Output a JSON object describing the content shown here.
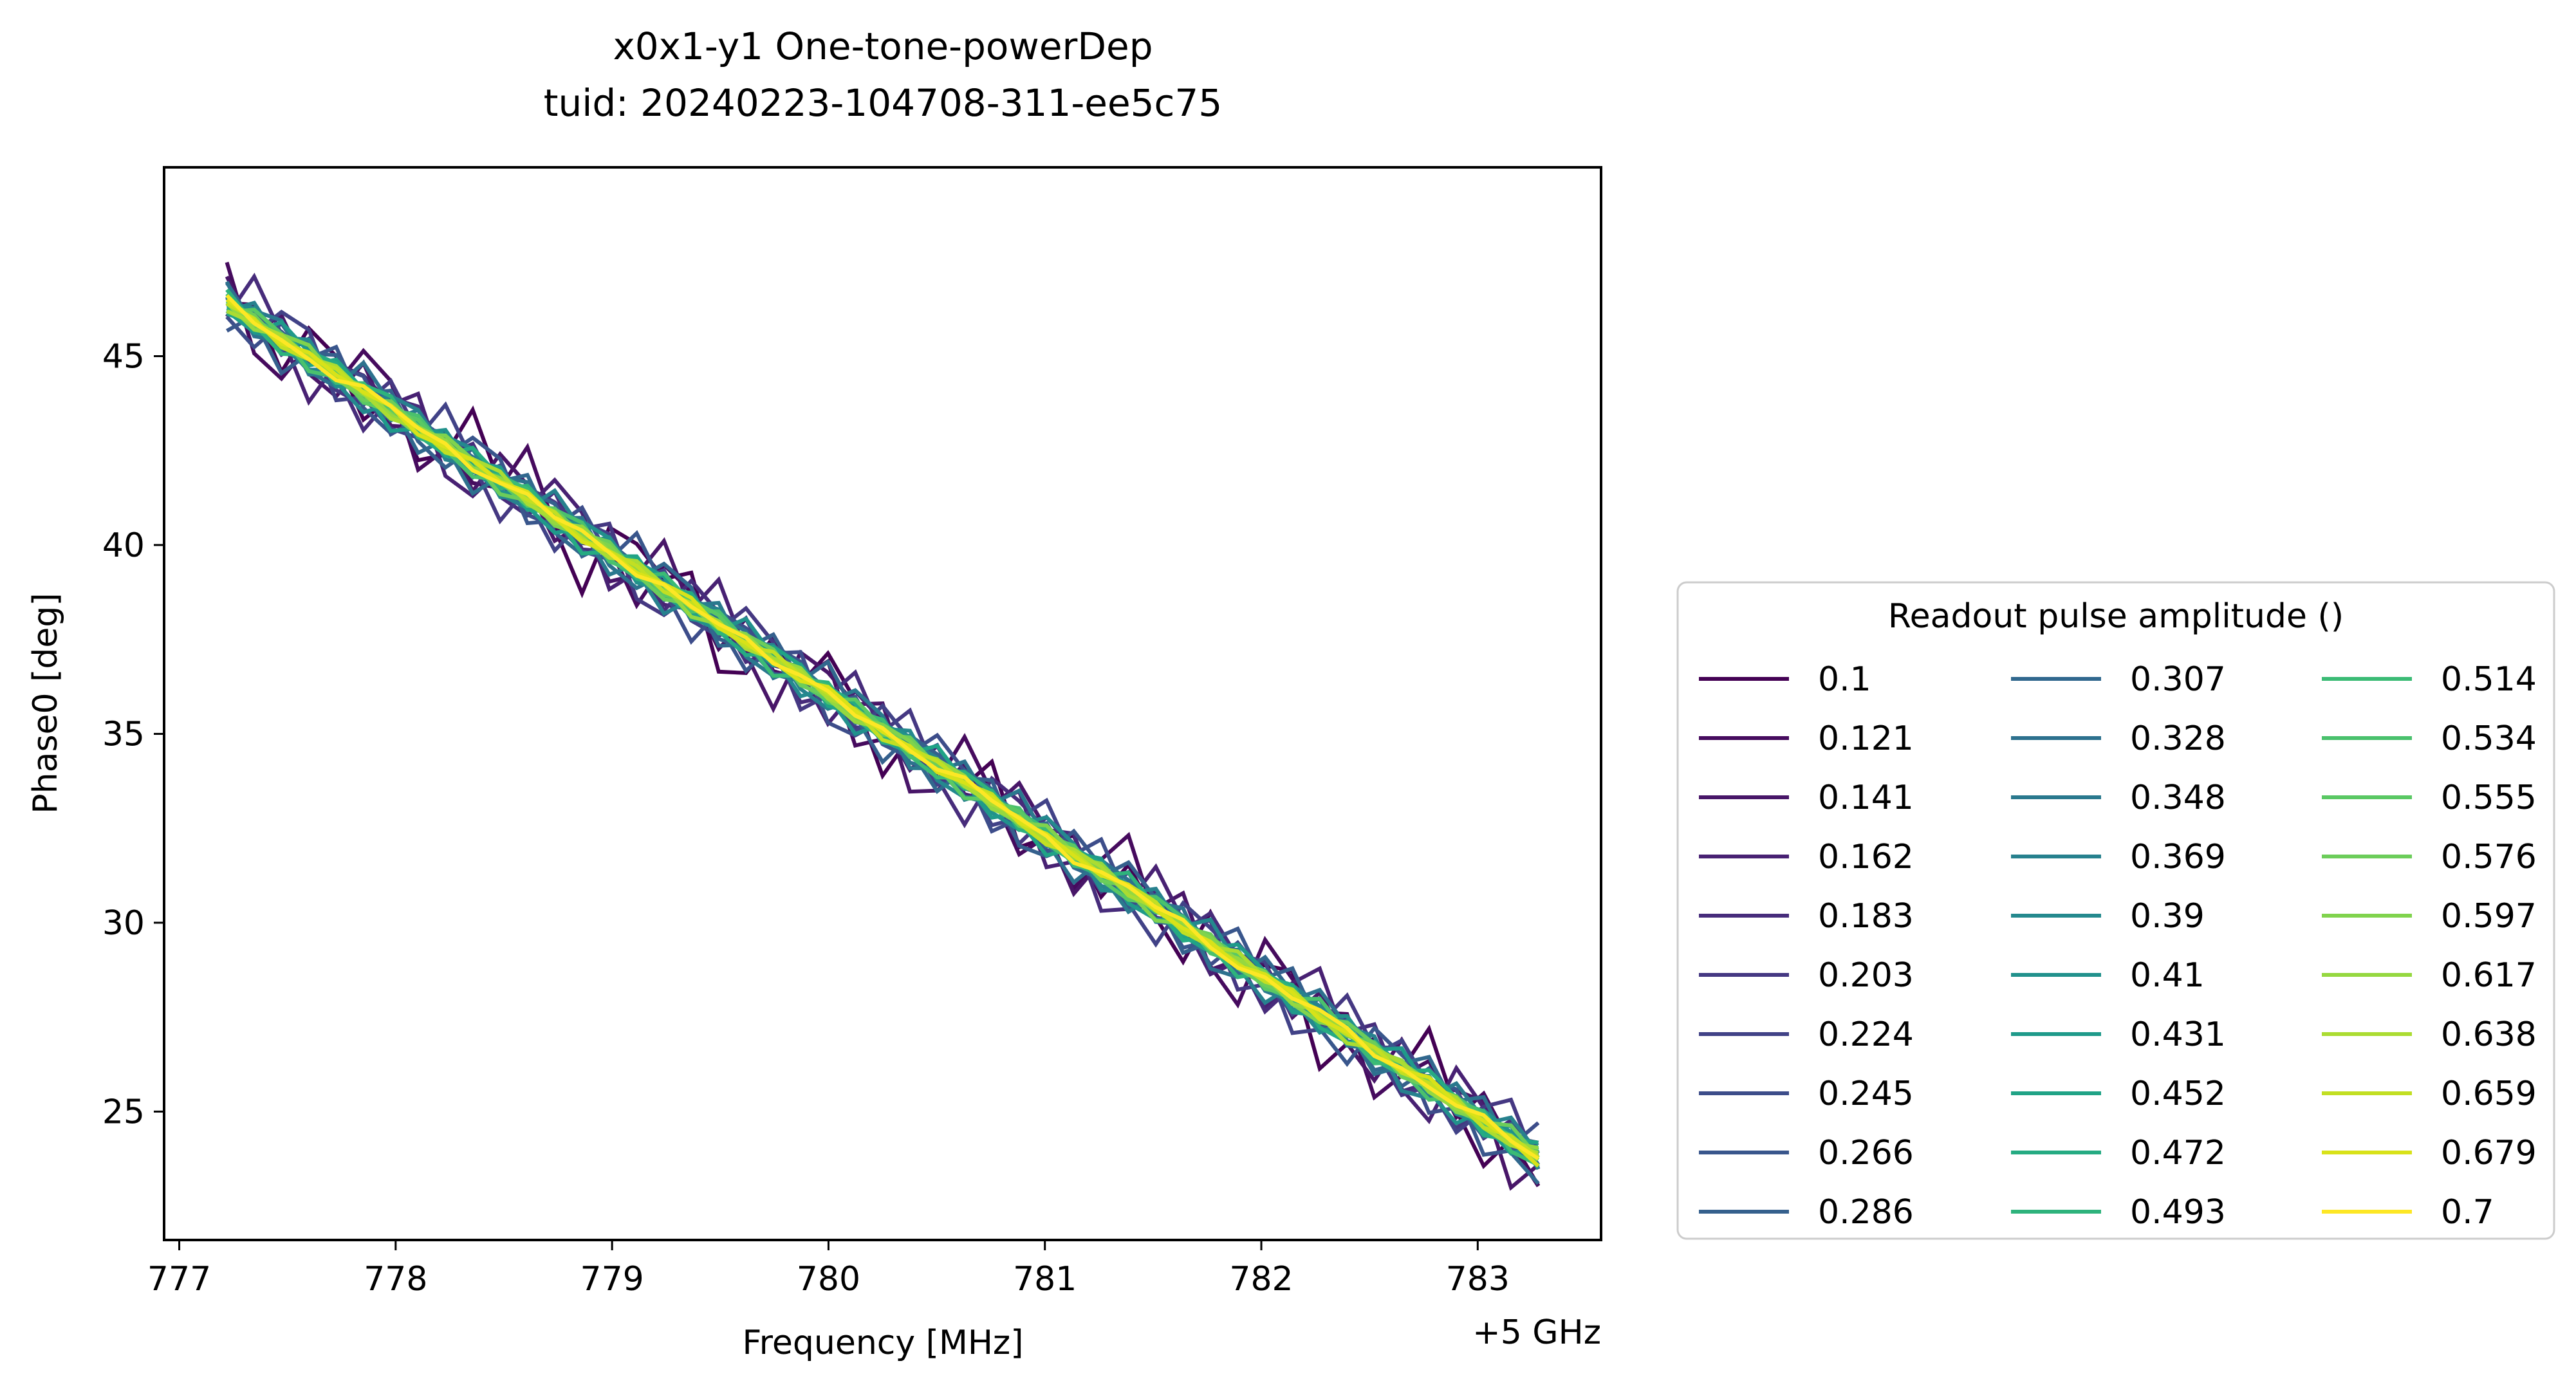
{
  "chart_data": {
    "type": "line",
    "title": "x0x1-y1 One-tone-powerDep",
    "subtitle": "tuid: 20240223-104708-311-ee5c75",
    "xlabel": "Frequency [MHz]",
    "x_offset_label": "+5 GHz",
    "ylabel": "Phase0 [deg]",
    "xlim": [
      776.93,
      783.57
    ],
    "ylim": [
      21.6,
      50.0
    ],
    "x_ticks": [
      777,
      778,
      779,
      780,
      781,
      782,
      783
    ],
    "y_ticks": [
      25,
      30,
      35,
      40,
      45
    ],
    "grid": false,
    "x_range": [
      777.22,
      783.28
    ],
    "n_points": 49,
    "fit": {
      "start": 46.4,
      "slope": -3.73
    },
    "legend": {
      "title": "Readout pulse amplitude ()",
      "placement": "outside-right",
      "columns": 3
    },
    "series": [
      {
        "name": "0.1",
        "color": "#440154",
        "spread": 1.5
      },
      {
        "name": "0.121",
        "color": "#460b5e",
        "spread": 1.4
      },
      {
        "name": "0.141",
        "color": "#481668",
        "spread": 1.3
      },
      {
        "name": "0.162",
        "color": "#482173",
        "spread": 1.2
      },
      {
        "name": "0.183",
        "color": "#472c7b",
        "spread": 1.1
      },
      {
        "name": "0.203",
        "color": "#453882",
        "spread": 1.05
      },
      {
        "name": "0.224",
        "color": "#414287",
        "spread": 1.0
      },
      {
        "name": "0.245",
        "color": "#3d4d8a",
        "spread": 0.95
      },
      {
        "name": "0.266",
        "color": "#39568c",
        "spread": 0.9
      },
      {
        "name": "0.286",
        "color": "#35608d",
        "spread": 0.85
      },
      {
        "name": "0.307",
        "color": "#31688e",
        "spread": 0.8
      },
      {
        "name": "0.328",
        "color": "#2d718e",
        "spread": 0.75
      },
      {
        "name": "0.348",
        "color": "#2a798e",
        "spread": 0.7
      },
      {
        "name": "0.369",
        "color": "#27818e",
        "spread": 0.65
      },
      {
        "name": "0.39",
        "color": "#24898e",
        "spread": 0.6
      },
      {
        "name": "0.41",
        "color": "#21918c",
        "spread": 0.55
      },
      {
        "name": "0.431",
        "color": "#1f9a8a",
        "spread": 0.5
      },
      {
        "name": "0.452",
        "color": "#20a386",
        "spread": 0.48
      },
      {
        "name": "0.472",
        "color": "#25ab82",
        "spread": 0.45
      },
      {
        "name": "0.493",
        "color": "#2eb37c",
        "spread": 0.42
      },
      {
        "name": "0.514",
        "color": "#3bbb75",
        "spread": 0.4
      },
      {
        "name": "0.534",
        "color": "#4ac16d",
        "spread": 0.38
      },
      {
        "name": "0.555",
        "color": "#5ac864",
        "spread": 0.35
      },
      {
        "name": "0.576",
        "color": "#6ccd5a",
        "spread": 0.33
      },
      {
        "name": "0.597",
        "color": "#80d34d",
        "spread": 0.3
      },
      {
        "name": "0.617",
        "color": "#95d840",
        "spread": 0.28
      },
      {
        "name": "0.638",
        "color": "#abdc32",
        "spread": 0.26
      },
      {
        "name": "0.659",
        "color": "#c2df23",
        "spread": 0.24
      },
      {
        "name": "0.679",
        "color": "#d8e219",
        "spread": 0.22
      },
      {
        "name": "0.7",
        "color": "#fde725",
        "spread": 0.2
      }
    ]
  }
}
